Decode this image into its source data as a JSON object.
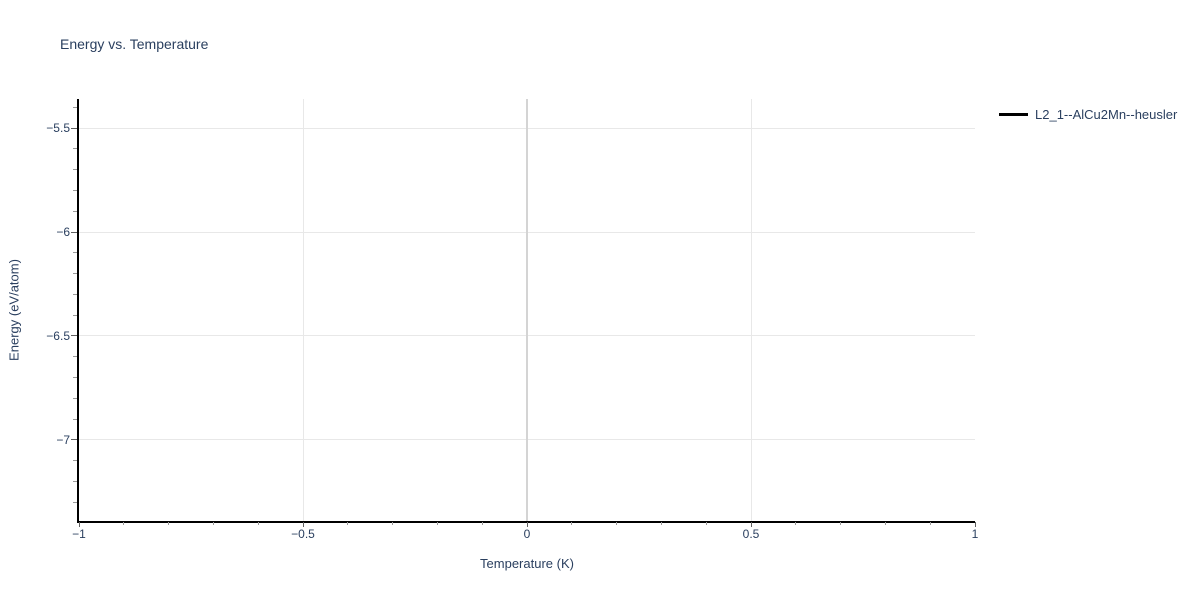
{
  "chart_data": {
    "type": "line",
    "title": "Energy vs. Temperature",
    "xlabel": "Temperature (K)",
    "ylabel": "Energy (eV/atom)",
    "xlim": [
      -1,
      1
    ],
    "ylim": [
      -7.39,
      -5.36
    ],
    "x_ticks": [
      {
        "value": -1,
        "label": "−1"
      },
      {
        "value": -0.5,
        "label": "−0.5"
      },
      {
        "value": 0,
        "label": "0"
      },
      {
        "value": 0.5,
        "label": "0.5"
      },
      {
        "value": 1,
        "label": "1"
      }
    ],
    "y_ticks": [
      {
        "value": -5.5,
        "label": "−5.5"
      },
      {
        "value": -6,
        "label": "−6"
      },
      {
        "value": -6.5,
        "label": "−6.5"
      },
      {
        "value": -7,
        "label": "−7"
      }
    ],
    "minor_tick_step": 0.1,
    "grid": true,
    "x_gridline_values": [
      -0.5,
      0.5
    ],
    "x_zeroline_value": 0,
    "legend_position": "right-outside",
    "series": [
      {
        "name": "L2_1--AlCu2Mn--heusler",
        "color": "#000000",
        "mode": "lines",
        "x": [],
        "y": []
      }
    ]
  },
  "colors": {
    "text": "#2a3f5f",
    "axis_line": "#000000",
    "grid": "#e8e8e8",
    "zeroline": "#d4d4d4",
    "tick_major": "#5f5f5f",
    "tick_minor": "#999999",
    "background": "#ffffff",
    "legend_swatch": "#000000"
  }
}
